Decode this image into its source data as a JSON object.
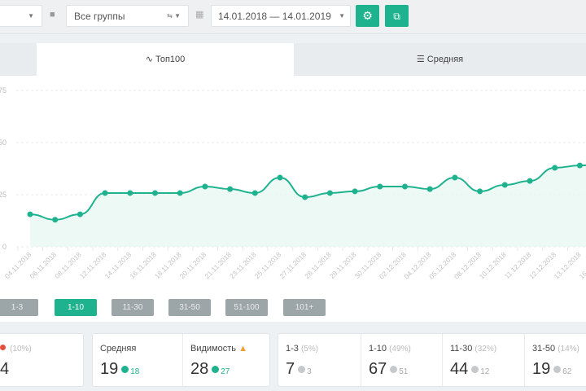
{
  "toolbar": {
    "groups_label": "Все группы",
    "date_range": "14.01.2018 — 14.01.2019",
    "settings_icon": "gear-icon",
    "export_icon": "export-icon"
  },
  "tabs": [
    {
      "label": "Топ100",
      "icon": "chart-line-icon"
    },
    {
      "label": "Средняя",
      "icon": "sliders-icon"
    }
  ],
  "chart_data": {
    "type": "area",
    "title": "",
    "xlabel": "",
    "ylabel": "",
    "ylim": [
      0,
      75
    ],
    "yticks": [
      "0",
      "25",
      "50",
      "75"
    ],
    "x": [
      "04.11.2018",
      "06.11.2018",
      "08.11.2018",
      "12.11.2018",
      "14.11.2018",
      "16.11.2018",
      "18.11.2018",
      "20.11.2018",
      "21.11.2018",
      "23.11.2018",
      "25.11.2018",
      "27.11.2018",
      "28.11.2018",
      "29.11.2018",
      "30.11.2018",
      "02.12.2018",
      "04.12.2018",
      "05.12.2018",
      "08.12.2018",
      "10.12.2018",
      "11.12.2018",
      "12.12.2018",
      "13.12.2018",
      "16.12.2018"
    ],
    "series": [
      {
        "name": "Топ100",
        "color": "#1fb28f",
        "values": [
          15.6,
          13,
          15.6,
          25.8,
          25.8,
          25.8,
          25.8,
          28.9,
          27.7,
          25.8,
          33.2,
          23.8,
          25.8,
          26.6,
          28.9,
          28.9,
          27.7,
          33.2,
          26.6,
          29.7,
          31.6,
          37.9,
          39,
          40
        ]
      }
    ]
  },
  "ranges": [
    {
      "label": "1-3",
      "active": false
    },
    {
      "label": "1-10",
      "active": true
    },
    {
      "label": "11-30",
      "active": false
    },
    {
      "label": "31-50",
      "active": false
    },
    {
      "label": "51-100",
      "active": false
    },
    {
      "label": "101+",
      "active": false
    }
  ],
  "cards": {
    "first": {
      "pct": "(10%)",
      "value": "4"
    },
    "avg": {
      "label": "Средняя",
      "value": "19",
      "delta": "18"
    },
    "vis": {
      "label": "Видимость",
      "value": "28",
      "delta": "27"
    },
    "r13": {
      "label": "1-3",
      "pct": "(5%)",
      "value": "7",
      "delta": "3"
    },
    "r110": {
      "label": "1-10",
      "pct": "(49%)",
      "value": "67",
      "delta": "51"
    },
    "r1130": {
      "label": "11-30",
      "pct": "(32%)",
      "value": "44",
      "delta": "12"
    },
    "r3150": {
      "label": "31-50",
      "pct": "(14%)",
      "value": "19",
      "delta": "62"
    }
  }
}
